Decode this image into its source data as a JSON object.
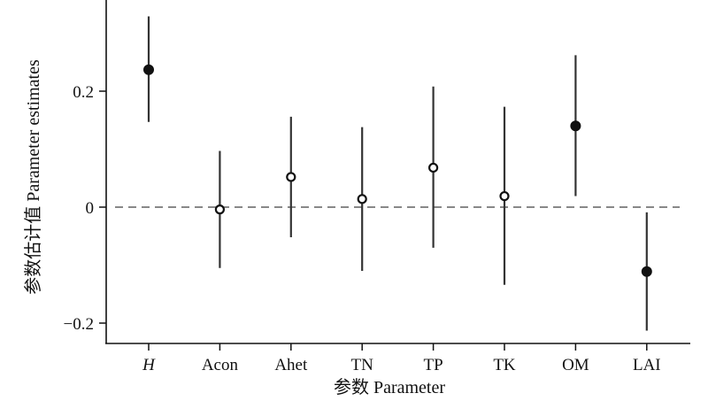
{
  "chart_data": {
    "type": "scatter",
    "subtype": "point-estimates-with-error-bars",
    "title": "",
    "xlabel": "参数 Parameter",
    "ylabel": "参数估计值 Parameter estimates",
    "ylim": [
      -0.24,
      0.357
    ],
    "yticks": [
      -0.2,
      0,
      0.2
    ],
    "ytick_labels": [
      "−0.2",
      "0",
      "0.2"
    ],
    "reference_line": {
      "y": 0,
      "style": "dashed"
    },
    "grid": false,
    "categories": [
      "H",
      "Acon",
      "Ahet",
      "TN",
      "TP",
      "TK",
      "OM",
      "LAI"
    ],
    "estimates": [
      0.237,
      -0.004,
      0.052,
      0.014,
      0.068,
      0.019,
      0.14,
      -0.111
    ],
    "lower": [
      0.147,
      -0.105,
      -0.052,
      -0.11,
      -0.07,
      -0.134,
      0.019,
      -0.213
    ],
    "upper": [
      0.329,
      0.097,
      0.156,
      0.138,
      0.208,
      0.173,
      0.262,
      -0.009
    ],
    "significant": [
      true,
      false,
      false,
      false,
      false,
      false,
      true,
      true
    ],
    "italic_categories": [
      "H"
    ]
  }
}
